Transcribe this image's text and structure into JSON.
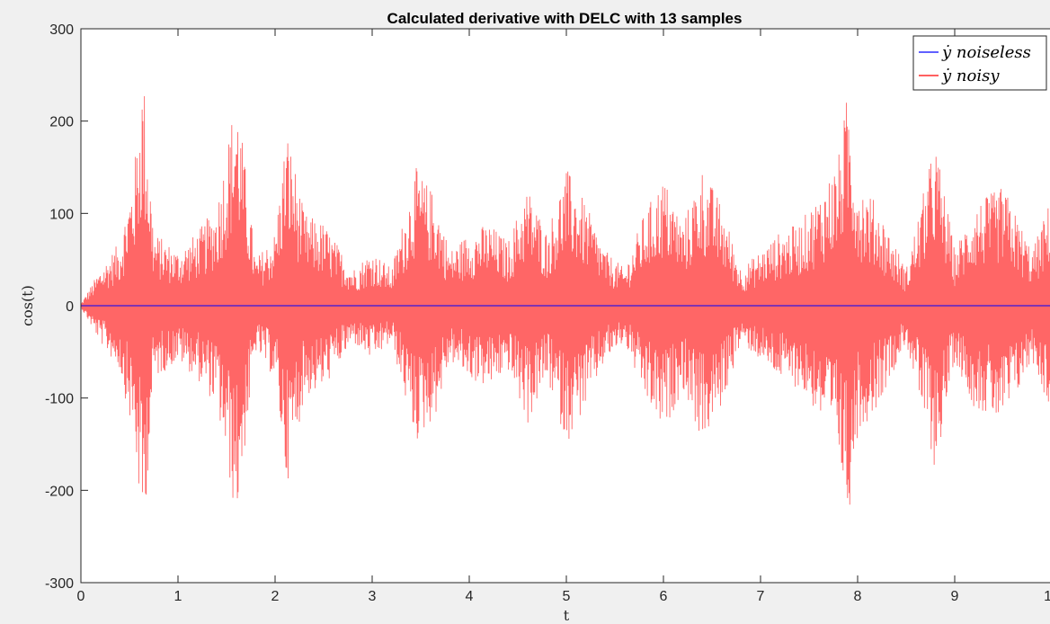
{
  "chart_data": {
    "type": "line",
    "title": "Calculated derivative with DELC with 13 samples",
    "xlabel": "t",
    "ylabel": "cos(t)",
    "xlim": [
      0,
      10
    ],
    "ylim": [
      -300,
      300
    ],
    "x_ticks": [
      "0",
      "1",
      "2",
      "3",
      "4",
      "5",
      "6",
      "7",
      "8",
      "9",
      "10"
    ],
    "y_ticks": [
      "300",
      "200",
      "100",
      "0",
      "-100",
      "-200",
      "-300"
    ],
    "grid": false,
    "legend_position": "top-right",
    "series": [
      {
        "name": "ẏ noiseless",
        "color": "#0000ff",
        "x": [
          0,
          10
        ],
        "y": [
          0,
          0
        ]
      },
      {
        "name": "ẏ noisy",
        "color": "#ff0000",
        "x": [
          0,
          0.2,
          0.4,
          0.55,
          0.63,
          0.65,
          0.75,
          1.0,
          1.2,
          1.4,
          1.6,
          1.62,
          1.8,
          2.0,
          2.12,
          2.3,
          2.5,
          2.8,
          3.0,
          3.2,
          3.45,
          3.65,
          3.8,
          4.0,
          4.2,
          4.4,
          4.6,
          4.8,
          5.0,
          5.2,
          5.4,
          5.6,
          5.8,
          6.0,
          6.2,
          6.4,
          6.6,
          6.8,
          7.0,
          7.2,
          7.4,
          7.6,
          7.8,
          7.9,
          8.0,
          8.2,
          8.5,
          8.8,
          9.0,
          9.2,
          9.5,
          9.8,
          10.0
        ],
        "y_envelope": [
          2,
          40,
          70,
          150,
          250,
          245,
          80,
          60,
          80,
          110,
          235,
          220,
          50,
          80,
          195,
          100,
          90,
          40,
          60,
          40,
          150,
          120,
          60,
          80,
          90,
          70,
          130,
          80,
          150,
          110,
          60,
          40,
          100,
          140,
          90,
          150,
          110,
          40,
          60,
          80,
          90,
          120,
          160,
          235,
          140,
          110,
          40,
          180,
          60,
          110,
          130,
          60,
          120
        ]
      }
    ]
  }
}
